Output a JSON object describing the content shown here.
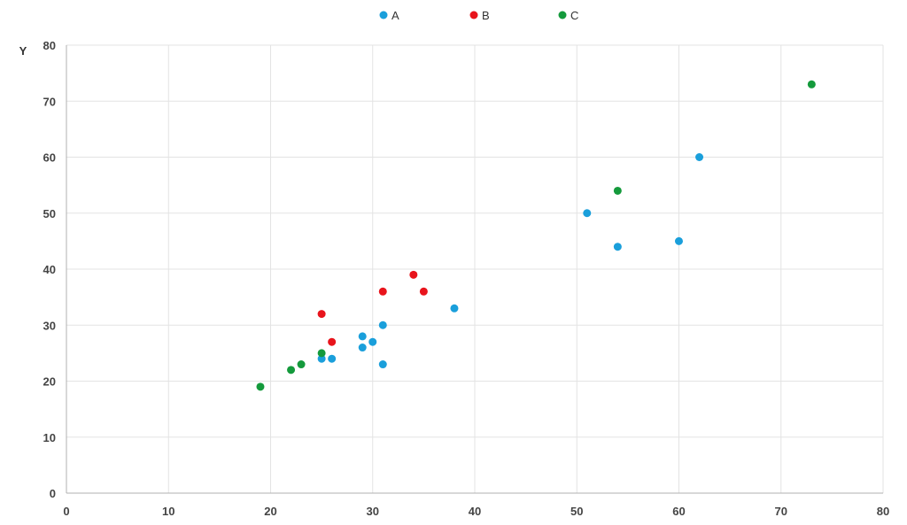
{
  "chart_data": {
    "type": "scatter",
    "title": "",
    "xlabel": "",
    "ylabel": "Y",
    "xlim": [
      0,
      80
    ],
    "ylim": [
      0,
      80
    ],
    "x_ticks": [
      0,
      10,
      20,
      30,
      40,
      50,
      60,
      70,
      80
    ],
    "y_ticks": [
      0,
      10,
      20,
      30,
      40,
      50,
      60,
      70,
      80
    ],
    "grid": true,
    "legend_position": "top",
    "series": [
      {
        "name": "A",
        "color": "#1a9fdb",
        "points": [
          {
            "x": 25,
            "y": 24
          },
          {
            "x": 26,
            "y": 24
          },
          {
            "x": 29,
            "y": 26
          },
          {
            "x": 29,
            "y": 28
          },
          {
            "x": 30,
            "y": 27
          },
          {
            "x": 31,
            "y": 30
          },
          {
            "x": 31,
            "y": 23
          },
          {
            "x": 38,
            "y": 33
          },
          {
            "x": 51,
            "y": 50
          },
          {
            "x": 54,
            "y": 44
          },
          {
            "x": 60,
            "y": 45
          },
          {
            "x": 62,
            "y": 60
          }
        ]
      },
      {
        "name": "B",
        "color": "#e8141c",
        "points": [
          {
            "x": 25,
            "y": 32
          },
          {
            "x": 26,
            "y": 27
          },
          {
            "x": 31,
            "y": 36
          },
          {
            "x": 34,
            "y": 39
          },
          {
            "x": 35,
            "y": 36
          }
        ]
      },
      {
        "name": "C",
        "color": "#149a3c",
        "points": [
          {
            "x": 19,
            "y": 19
          },
          {
            "x": 22,
            "y": 22
          },
          {
            "x": 23,
            "y": 23
          },
          {
            "x": 25,
            "y": 25
          },
          {
            "x": 54,
            "y": 54
          },
          {
            "x": 73,
            "y": 73
          }
        ]
      }
    ]
  }
}
